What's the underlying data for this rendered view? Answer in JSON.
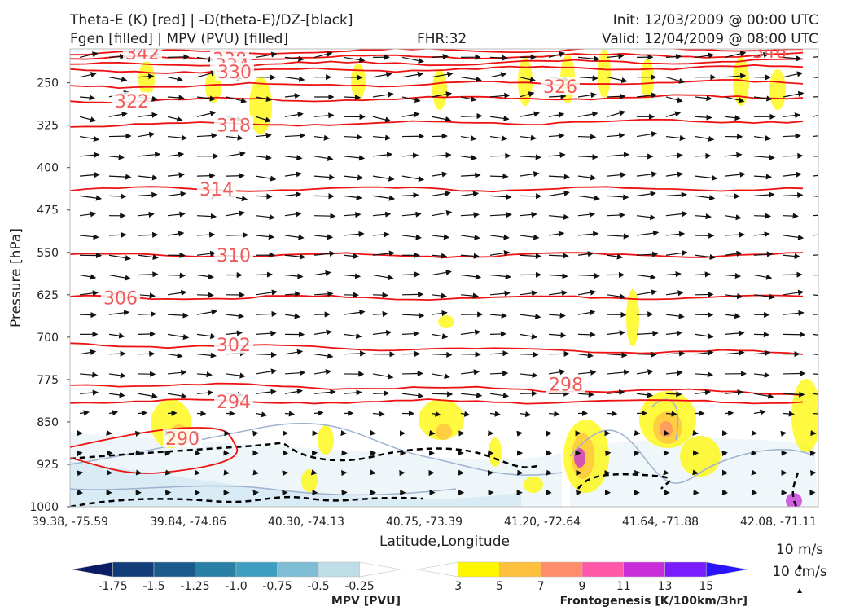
{
  "header": {
    "title_left_1": "Theta-E (K) [red] | -D(theta-E)/DZ-[black]",
    "title_left_2": "Fgen [filled] | MPV (PVU) [filled]",
    "fhr": "FHR:32",
    "init": "Init: 12/03/2009 @ 00:00 UTC",
    "valid": "Valid: 12/04/2009 @ 08:00 UTC"
  },
  "chart_data": {
    "type": "cross-section",
    "xlabel": "Latitude,Longitude",
    "ylabel": "Pressure [hPa]",
    "x_ticks": [
      "39.38, -75.59",
      "39.84, -74.86",
      "40.30, -74.13",
      "40.75, -73.39",
      "41.20, -72.64",
      "41.64, -71.88",
      "42.08, -71.11"
    ],
    "y_ticks": [
      250,
      325,
      400,
      475,
      550,
      625,
      700,
      775,
      850,
      925,
      1000
    ],
    "ylim": [
      1000,
      190
    ],
    "theta_e_contours": [
      {
        "label": "342",
        "p": 197
      },
      {
        "label": "338",
        "p": 208
      },
      {
        "label": "334",
        "p": 219
      },
      {
        "label": "330",
        "p": 230
      },
      {
        "label": "326",
        "p": 256
      },
      {
        "label": "322",
        "p": 282
      },
      {
        "label": "318",
        "p": 325
      },
      {
        "label": "314",
        "p": 438
      },
      {
        "label": "310",
        "p": 555
      },
      {
        "label": "306",
        "p": 630
      },
      {
        "label": "302",
        "p": 713
      },
      {
        "label": "298",
        "p": 783
      },
      {
        "label": "294",
        "p": 814
      },
      {
        "label": "290",
        "p": 879
      }
    ],
    "theta_e_extra_label": "346",
    "mpv_colorbar": {
      "title": "MPV [PVU]",
      "ticks": [
        "-1.75",
        "-1.5",
        "-1.25",
        "-1.0",
        "-0.75",
        "-0.5",
        "-0.25"
      ],
      "colors": [
        "#0a1d64",
        "#123c78",
        "#1a5a8c",
        "#2a7fa6",
        "#3f9ebf",
        "#7fbdd4",
        "#bfdde6",
        "#ffffff"
      ]
    },
    "fgen_colorbar": {
      "title": "Frontogenesis [K/100km/3hr]",
      "ticks": [
        "3",
        "5",
        "7",
        "9",
        "11",
        "13",
        "15"
      ],
      "colors": [
        "#ffffff",
        "#fff700",
        "#ffc040",
        "#ff8c6a",
        "#ff58a8",
        "#c82cd8",
        "#7a1cff",
        "#2a14ff"
      ]
    },
    "vector_reference": {
      "horizontal": "10 m/s",
      "vertical": "10 cm/s"
    }
  },
  "colors": {
    "theta_e": "#ee1111",
    "dthetae": "#000000",
    "mpv_contour": "#9fb3d0",
    "arrows": "#111111"
  }
}
